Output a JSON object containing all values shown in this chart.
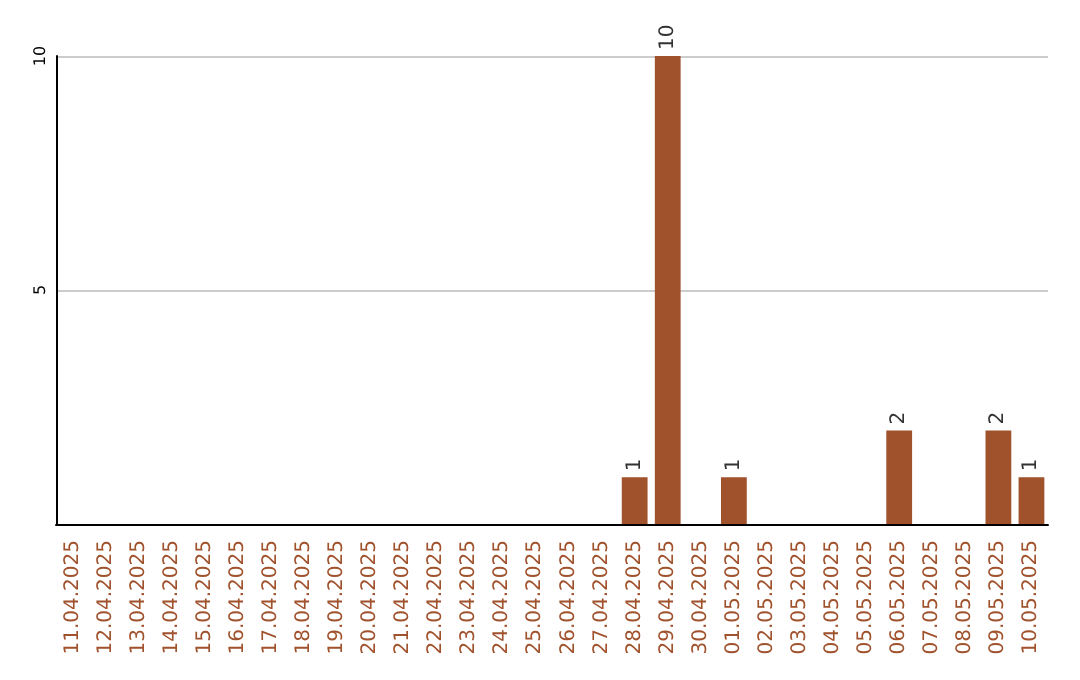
{
  "chart_data": {
    "type": "bar",
    "categories": [
      "11.04.2025",
      "12.04.2025",
      "13.04.2025",
      "14.04.2025",
      "15.04.2025",
      "16.04.2025",
      "17.04.2025",
      "18.04.2025",
      "19.04.2025",
      "20.04.2025",
      "21.04.2025",
      "22.04.2025",
      "23.04.2025",
      "24.04.2025",
      "25.04.2025",
      "26.04.2025",
      "27.04.2025",
      "28.04.2025",
      "29.04.2025",
      "30.04.2025",
      "01.05.2025",
      "02.05.2025",
      "03.05.2025",
      "04.05.2025",
      "05.05.2025",
      "06.05.2025",
      "07.05.2025",
      "08.05.2025",
      "09.05.2025",
      "10.05.2025"
    ],
    "values": [
      0,
      0,
      0,
      0,
      0,
      0,
      0,
      0,
      0,
      0,
      0,
      0,
      0,
      0,
      0,
      0,
      0,
      1,
      10,
      0,
      1,
      0,
      0,
      0,
      0,
      2,
      0,
      0,
      2,
      1
    ],
    "value_labels": [
      null,
      null,
      null,
      null,
      null,
      null,
      null,
      null,
      null,
      null,
      null,
      null,
      null,
      null,
      null,
      null,
      null,
      "1",
      "10",
      null,
      "1",
      null,
      null,
      null,
      null,
      "2",
      null,
      null,
      "2",
      "1"
    ],
    "color": "#a0522d",
    "ylim": [
      0,
      10
    ],
    "yticks": [
      5,
      10
    ],
    "grid": "y"
  }
}
